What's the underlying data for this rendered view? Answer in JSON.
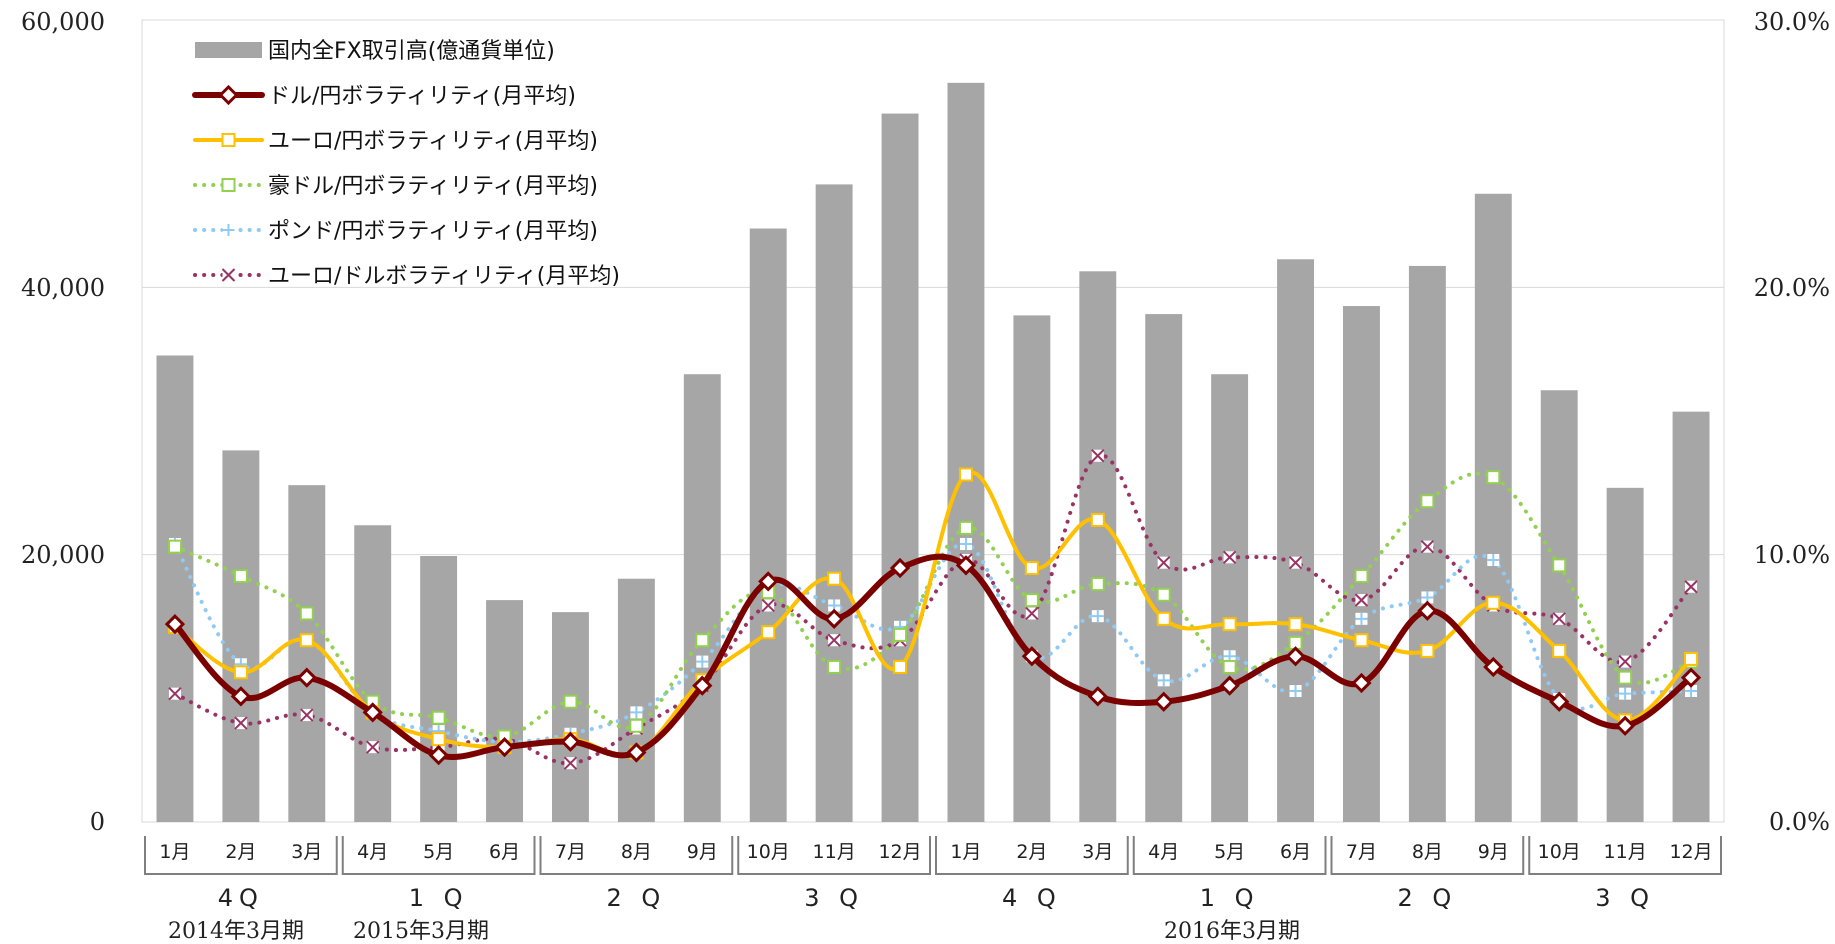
{
  "chart_data": {
    "type": "bar",
    "categories": [
      "1月",
      "2月",
      "3月",
      "4月",
      "5月",
      "6月",
      "7月",
      "8月",
      "9月",
      "10月",
      "11月",
      "12月",
      "1月",
      "2月",
      "3月",
      "4月",
      "5月",
      "6月",
      "7月",
      "8月",
      "9月",
      "10月",
      "11月",
      "12月"
    ],
    "quarters": [
      "4Q",
      "1 Q",
      "2 Q",
      "3 Q",
      "4 Q",
      "1 Q",
      "2 Q",
      "3 Q"
    ],
    "fiscal_years": [
      "2014年3月期",
      "2015年3月期",
      "2016年3月期"
    ],
    "y_left": {
      "ylim": [
        0,
        60000
      ],
      "ticks": [
        "0",
        "20,000",
        "40,000",
        "60,000"
      ]
    },
    "y_right": {
      "ylim": [
        0,
        30
      ],
      "ticks": [
        "0.0%",
        "10.0%",
        "20.0%",
        "30.0%"
      ]
    },
    "series": [
      {
        "name": "国内全FX取引高(億通貨単位)",
        "type": "bar",
        "axis": "left",
        "color": "#a6a6a6",
        "values": [
          34900,
          27800,
          25200,
          22200,
          19900,
          16600,
          15700,
          18200,
          33500,
          44400,
          47700,
          53000,
          55300,
          37900,
          41200,
          38000,
          33500,
          42100,
          38600,
          41600,
          47000,
          32300,
          25000,
          30700
        ]
      },
      {
        "name": "ドル/円ボラティリティ(月平均)",
        "type": "line",
        "axis": "right",
        "color": "#7b0000",
        "marker": "diamond",
        "values": [
          7.4,
          4.7,
          5.4,
          4.1,
          2.5,
          2.8,
          3.0,
          2.6,
          5.1,
          9.0,
          7.6,
          9.5,
          9.6,
          6.2,
          4.7,
          4.5,
          5.1,
          6.2,
          5.2,
          7.9,
          5.8,
          4.5,
          3.6,
          5.4
        ]
      },
      {
        "name": "ユーロ/円ボラティリティ(月平均)",
        "type": "line",
        "axis": "right",
        "color": "#ffc000",
        "marker": "square",
        "values": [
          7.3,
          5.6,
          6.8,
          4.1,
          3.1,
          2.8,
          3.1,
          2.6,
          5.3,
          7.1,
          9.1,
          5.8,
          13.0,
          9.5,
          11.3,
          7.6,
          7.4,
          7.4,
          6.8,
          6.4,
          8.2,
          6.4,
          3.8,
          6.1
        ]
      },
      {
        "name": "豪ドル/円ボラティリティ(月平均)",
        "type": "line",
        "axis": "right",
        "color": "#92d050",
        "marker": "square",
        "dotted": true,
        "values": [
          10.3,
          9.2,
          7.8,
          4.5,
          3.9,
          3.2,
          4.5,
          3.6,
          6.8,
          8.6,
          5.8,
          7.0,
          11.0,
          8.3,
          8.9,
          8.5,
          5.8,
          6.7,
          9.2,
          12.0,
          12.9,
          9.6,
          5.4,
          6.0
        ]
      },
      {
        "name": "ポンド/円ボラティリティ(月平均)",
        "type": "line",
        "axis": "right",
        "color": "#8fcaf5",
        "marker": "plus",
        "dotted": true,
        "values": [
          10.4,
          5.9,
          6.8,
          4.1,
          3.4,
          3.0,
          3.3,
          4.1,
          6.0,
          8.8,
          8.1,
          7.3,
          10.4,
          6.2,
          7.7,
          5.3,
          6.2,
          4.9,
          7.6,
          8.4,
          9.8,
          4.6,
          4.8,
          4.9
        ]
      },
      {
        "name": "ユーロ/ドルボラティリティ(月平均)",
        "type": "line",
        "axis": "right",
        "color": "#993366",
        "marker": "x",
        "dotted": true,
        "values": [
          4.8,
          3.7,
          4.0,
          2.8,
          2.8,
          3.1,
          2.2,
          3.5,
          5.1,
          8.1,
          6.8,
          6.8,
          9.8,
          7.8,
          13.7,
          9.7,
          9.9,
          9.7,
          8.3,
          10.3,
          8.1,
          7.6,
          6.0,
          8.8
        ]
      }
    ],
    "legend": "top-left",
    "grid": true
  }
}
